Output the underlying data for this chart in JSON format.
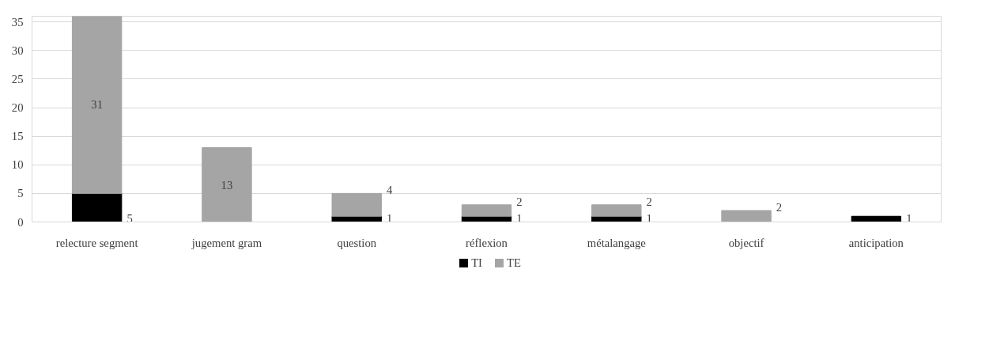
{
  "chart_data": {
    "type": "bar",
    "stacked": true,
    "categories": [
      "relecture segment",
      "jugement gram",
      "question",
      "réflexion",
      "métalangage",
      "objectif",
      "anticipation"
    ],
    "series": [
      {
        "name": "TI",
        "color": "#000000",
        "values": [
          5,
          null,
          1,
          1,
          1,
          null,
          1
        ]
      },
      {
        "name": "TE",
        "color": "#a5a5a5",
        "values": [
          31,
          13,
          4,
          2,
          2,
          2,
          null
        ]
      }
    ],
    "ylim": [
      0,
      36
    ],
    "yticks": [
      0,
      5,
      10,
      15,
      20,
      25,
      30,
      35
    ],
    "grid": "y",
    "legend": "bottom",
    "data_labels": true
  }
}
